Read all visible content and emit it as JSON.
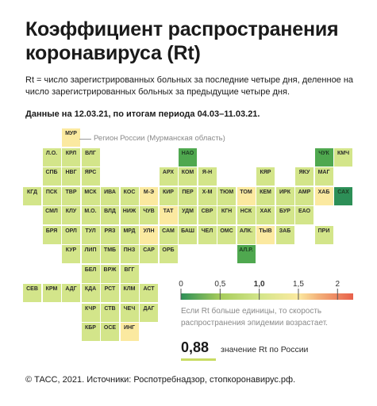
{
  "title": "Коэффициент распространения коронавируса (Rt)",
  "description": "Rt = число зарегистрированных больных за последние четыре дня, деленное на число зарегистрированных больных за предыдущие четыре дня.",
  "period": "Данные на 12.03.21, по итогам периода 04.03–11.03.21.",
  "callout": "Регион России (Мурманская область)",
  "scale": {
    "ticks": [
      "0",
      "0,5",
      "1,0",
      "1,5",
      "2"
    ],
    "note": "Если Rt больше единицы, то скорость распространения эпидемии возрастает."
  },
  "russia": {
    "value": "0,88",
    "label": "значение Rt по России"
  },
  "footer": "© ТАСС, 2021. Источники: Роспотребнадзор, стопкоронавирус.рф.",
  "colors": {
    "light_green": "#d3e58a",
    "mid_green": "#a7cc5c",
    "dark_green": "#4fa84f",
    "deep_green": "#2d8f57",
    "yellow": "#fbe9a0",
    "orange": "#f3b27a",
    "red": "#e8604a"
  },
  "chart_data": {
    "type": "heatmap",
    "regions": [
      {
        "code": "МУР",
        "row": 0,
        "col": 2,
        "color": "yellow"
      },
      {
        "code": "Л.О.",
        "row": 1,
        "col": 1,
        "color": "light_green"
      },
      {
        "code": "КРЛ",
        "row": 1,
        "col": 2,
        "color": "light_green"
      },
      {
        "code": "ВЛГ",
        "row": 1,
        "col": 3,
        "color": "light_green"
      },
      {
        "code": "НАО",
        "row": 1,
        "col": 8,
        "color": "dark_green"
      },
      {
        "code": "ЧУК",
        "row": 1,
        "col": 15,
        "color": "dark_green"
      },
      {
        "code": "КМЧ",
        "row": 1,
        "col": 16,
        "color": "light_green"
      },
      {
        "code": "СПБ",
        "row": 2,
        "col": 1,
        "color": "light_green"
      },
      {
        "code": "НВГ",
        "row": 2,
        "col": 2,
        "color": "light_green"
      },
      {
        "code": "ЯРС",
        "row": 2,
        "col": 3,
        "color": "light_green"
      },
      {
        "code": "АРХ",
        "row": 2,
        "col": 7,
        "color": "light_green"
      },
      {
        "code": "КОМ",
        "row": 2,
        "col": 8,
        "color": "light_green"
      },
      {
        "code": "Я-Н",
        "row": 2,
        "col": 9,
        "color": "light_green"
      },
      {
        "code": "КЯР",
        "row": 2,
        "col": 12,
        "color": "light_green"
      },
      {
        "code": "ЯКУ",
        "row": 2,
        "col": 14,
        "color": "light_green"
      },
      {
        "code": "МАГ",
        "row": 2,
        "col": 15,
        "color": "light_green"
      },
      {
        "code": "КГД",
        "row": 3,
        "col": 0,
        "color": "light_green"
      },
      {
        "code": "ПСК",
        "row": 3,
        "col": 1,
        "color": "light_green"
      },
      {
        "code": "ТВР",
        "row": 3,
        "col": 2,
        "color": "light_green"
      },
      {
        "code": "МСК",
        "row": 3,
        "col": 3,
        "color": "light_green"
      },
      {
        "code": "ИВА",
        "row": 3,
        "col": 4,
        "color": "light_green"
      },
      {
        "code": "КОС",
        "row": 3,
        "col": 5,
        "color": "light_green"
      },
      {
        "code": "М-Э",
        "row": 3,
        "col": 6,
        "color": "yellow"
      },
      {
        "code": "КИР",
        "row": 3,
        "col": 7,
        "color": "light_green"
      },
      {
        "code": "ПЕР",
        "row": 3,
        "col": 8,
        "color": "light_green"
      },
      {
        "code": "Х-М",
        "row": 3,
        "col": 9,
        "color": "light_green"
      },
      {
        "code": "ТЮМ",
        "row": 3,
        "col": 10,
        "color": "light_green"
      },
      {
        "code": "ТОМ",
        "row": 3,
        "col": 11,
        "color": "yellow"
      },
      {
        "code": "КЕМ",
        "row": 3,
        "col": 12,
        "color": "light_green"
      },
      {
        "code": "ИРК",
        "row": 3,
        "col": 13,
        "color": "light_green"
      },
      {
        "code": "АМР",
        "row": 3,
        "col": 14,
        "color": "light_green"
      },
      {
        "code": "ХАБ",
        "row": 3,
        "col": 15,
        "color": "yellow"
      },
      {
        "code": "САХ",
        "row": 3,
        "col": 16,
        "color": "deep_green"
      },
      {
        "code": "СМЛ",
        "row": 4,
        "col": 1,
        "color": "light_green"
      },
      {
        "code": "КЛУ",
        "row": 4,
        "col": 2,
        "color": "light_green"
      },
      {
        "code": "М.О.",
        "row": 4,
        "col": 3,
        "color": "light_green"
      },
      {
        "code": "ВЛД",
        "row": 4,
        "col": 4,
        "color": "light_green"
      },
      {
        "code": "НИЖ",
        "row": 4,
        "col": 5,
        "color": "light_green"
      },
      {
        "code": "ЧУВ",
        "row": 4,
        "col": 6,
        "color": "light_green"
      },
      {
        "code": "ТАТ",
        "row": 4,
        "col": 7,
        "color": "yellow"
      },
      {
        "code": "УДМ",
        "row": 4,
        "col": 8,
        "color": "light_green"
      },
      {
        "code": "СВР",
        "row": 4,
        "col": 9,
        "color": "light_green"
      },
      {
        "code": "КГН",
        "row": 4,
        "col": 10,
        "color": "light_green"
      },
      {
        "code": "НСК",
        "row": 4,
        "col": 11,
        "color": "light_green"
      },
      {
        "code": "ХАК",
        "row": 4,
        "col": 12,
        "color": "light_green"
      },
      {
        "code": "БУР",
        "row": 4,
        "col": 13,
        "color": "light_green"
      },
      {
        "code": "ЕАО",
        "row": 4,
        "col": 14,
        "color": "light_green"
      },
      {
        "code": "БРЯ",
        "row": 5,
        "col": 1,
        "color": "light_green"
      },
      {
        "code": "ОРЛ",
        "row": 5,
        "col": 2,
        "color": "light_green"
      },
      {
        "code": "ТУЛ",
        "row": 5,
        "col": 3,
        "color": "light_green"
      },
      {
        "code": "РЯЗ",
        "row": 5,
        "col": 4,
        "color": "light_green"
      },
      {
        "code": "МРД",
        "row": 5,
        "col": 5,
        "color": "light_green"
      },
      {
        "code": "УЛН",
        "row": 5,
        "col": 6,
        "color": "yellow"
      },
      {
        "code": "САМ",
        "row": 5,
        "col": 7,
        "color": "light_green"
      },
      {
        "code": "БАШ",
        "row": 5,
        "col": 8,
        "color": "light_green"
      },
      {
        "code": "ЧЕЛ",
        "row": 5,
        "col": 9,
        "color": "light_green"
      },
      {
        "code": "ОМС",
        "row": 5,
        "col": 10,
        "color": "light_green"
      },
      {
        "code": "АЛК.",
        "row": 5,
        "col": 11,
        "color": "light_green"
      },
      {
        "code": "ТЫВ",
        "row": 5,
        "col": 12,
        "color": "yellow"
      },
      {
        "code": "ЗАБ",
        "row": 5,
        "col": 13,
        "color": "light_green"
      },
      {
        "code": "ПРИ",
        "row": 5,
        "col": 15,
        "color": "light_green"
      },
      {
        "code": "КУР",
        "row": 6,
        "col": 2,
        "color": "light_green"
      },
      {
        "code": "ЛИП",
        "row": 6,
        "col": 3,
        "color": "light_green"
      },
      {
        "code": "ТМБ",
        "row": 6,
        "col": 4,
        "color": "light_green"
      },
      {
        "code": "ПНЗ",
        "row": 6,
        "col": 5,
        "color": "light_green"
      },
      {
        "code": "САР",
        "row": 6,
        "col": 6,
        "color": "light_green"
      },
      {
        "code": "ОРБ",
        "row": 6,
        "col": 7,
        "color": "light_green"
      },
      {
        "code": "АЛ.Р.",
        "row": 6,
        "col": 11,
        "color": "dark_green"
      },
      {
        "code": "БЕЛ",
        "row": 7,
        "col": 3,
        "color": "light_green"
      },
      {
        "code": "ВРЖ",
        "row": 7,
        "col": 4,
        "color": "light_green"
      },
      {
        "code": "ВГГ",
        "row": 7,
        "col": 5,
        "color": "light_green"
      },
      {
        "code": "СЕВ",
        "row": 8,
        "col": 0,
        "color": "light_green"
      },
      {
        "code": "КРМ",
        "row": 8,
        "col": 1,
        "color": "light_green"
      },
      {
        "code": "АДГ",
        "row": 8,
        "col": 2,
        "color": "light_green"
      },
      {
        "code": "КДА",
        "row": 8,
        "col": 3,
        "color": "light_green"
      },
      {
        "code": "РСТ",
        "row": 8,
        "col": 4,
        "color": "light_green"
      },
      {
        "code": "КЛМ",
        "row": 8,
        "col": 5,
        "color": "light_green"
      },
      {
        "code": "АСТ",
        "row": 8,
        "col": 6,
        "color": "light_green"
      },
      {
        "code": "КЧР",
        "row": 9,
        "col": 3,
        "color": "light_green"
      },
      {
        "code": "СТВ",
        "row": 9,
        "col": 4,
        "color": "light_green"
      },
      {
        "code": "ЧЕЧ",
        "row": 9,
        "col": 5,
        "color": "light_green"
      },
      {
        "code": "ДАГ",
        "row": 9,
        "col": 6,
        "color": "light_green"
      },
      {
        "code": "КБР",
        "row": 10,
        "col": 3,
        "color": "light_green"
      },
      {
        "code": "ОСЕ",
        "row": 10,
        "col": 4,
        "color": "light_green"
      },
      {
        "code": "ИНГ",
        "row": 10,
        "col": 5,
        "color": "yellow"
      }
    ],
    "scale_range": [
      0,
      2.2
    ],
    "scale_stops": [
      {
        "value": 0,
        "color": "deep_green"
      },
      {
        "value": 0.5,
        "color": "mid_green"
      },
      {
        "value": 1.0,
        "color": "light_green"
      },
      {
        "value": 1.5,
        "color": "yellow"
      },
      {
        "value": 1.75,
        "color": "orange"
      },
      {
        "value": 2.2,
        "color": "red"
      }
    ],
    "russia_rt": 0.88
  }
}
